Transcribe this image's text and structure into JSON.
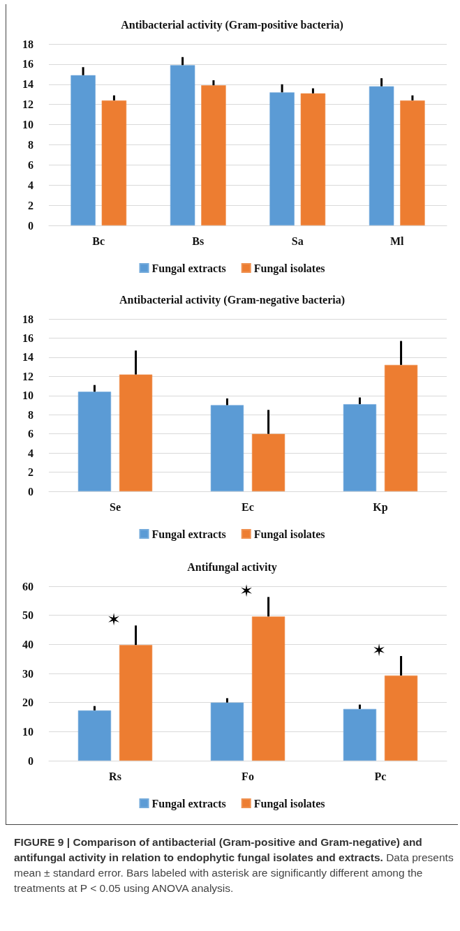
{
  "chart_data": [
    {
      "type": "bar",
      "title": "Antibacterial activity (Gram-positive bacteria)",
      "categories": [
        "Bc",
        "Bs",
        "Sa",
        "Ml"
      ],
      "series": [
        {
          "name": "Fungal extracts",
          "color": "#5b9bd5",
          "values": [
            14.9,
            15.9,
            13.2,
            13.8
          ],
          "errors": [
            [
              14.9,
              15.7
            ],
            [
              15.9,
              16.7
            ],
            [
              13.2,
              14.0
            ],
            [
              13.8,
              14.6
            ]
          ]
        },
        {
          "name": "Fungal isolates",
          "color": "#ed7d31",
          "values": [
            12.4,
            13.9,
            13.1,
            12.4
          ],
          "errors": [
            [
              12.4,
              12.9
            ],
            [
              13.9,
              14.4
            ],
            [
              13.1,
              13.6
            ],
            [
              12.4,
              12.9
            ]
          ]
        }
      ],
      "ylim": [
        0,
        18
      ],
      "yticks": [
        0,
        2,
        4,
        6,
        8,
        10,
        12,
        14,
        16,
        18
      ],
      "grid": "y",
      "legend": "bottom"
    },
    {
      "type": "bar",
      "title": "Antibacterial activity (Gram-negative bacteria)",
      "categories": [
        "Se",
        "Ec",
        "Kp"
      ],
      "series": [
        {
          "name": "Fungal extracts",
          "color": "#5b9bd5",
          "values": [
            10.4,
            9.0,
            9.1
          ],
          "errors": [
            [
              10.4,
              11.1
            ],
            [
              9.0,
              9.7
            ],
            [
              9.1,
              9.8
            ]
          ]
        },
        {
          "name": "Fungal isolates",
          "color": "#ed7d31",
          "values": [
            12.2,
            6.0,
            13.2
          ],
          "errors": [
            [
              12.2,
              14.7
            ],
            [
              6.0,
              8.5
            ],
            [
              13.2,
              15.7
            ]
          ]
        }
      ],
      "ylim": [
        0,
        18
      ],
      "yticks": [
        0,
        2,
        4,
        6,
        8,
        10,
        12,
        14,
        16,
        18
      ],
      "grid": "y",
      "legend": "bottom"
    },
    {
      "type": "bar",
      "title": "Antifungal activity",
      "categories": [
        "Rs",
        "Fo",
        "Pc"
      ],
      "series": [
        {
          "name": "Fungal extracts",
          "color": "#5b9bd5",
          "values": [
            17.3,
            20.0,
            17.8
          ],
          "errors": [
            [
              17.3,
              18.8
            ],
            [
              20.0,
              21.5
            ],
            [
              17.8,
              19.3
            ]
          ]
        },
        {
          "name": "Fungal isolates",
          "color": "#ed7d31",
          "values": [
            39.8,
            49.6,
            29.3
          ],
          "errors": [
            [
              39.8,
              46.5
            ],
            [
              49.6,
              56.3
            ],
            [
              29.3,
              36.0
            ]
          ]
        }
      ],
      "ylim": [
        0,
        60
      ],
      "yticks": [
        0,
        10,
        20,
        30,
        40,
        50,
        60
      ],
      "grid": "y",
      "legend": "bottom",
      "annotations": [
        "✶",
        "✶",
        "✶",
        "FIGURE 9 | Comparison of antibacterial (Gram-positive and Gram-negative) and antifungal activity in relation to endophytic fungal isolates and extracts.",
        "Data presents mean ± standard error. Bars labeled with asterisk are significantly different among the treatments at P < 0.05 using ANOVA analysis."
      ]
    }
  ]
}
